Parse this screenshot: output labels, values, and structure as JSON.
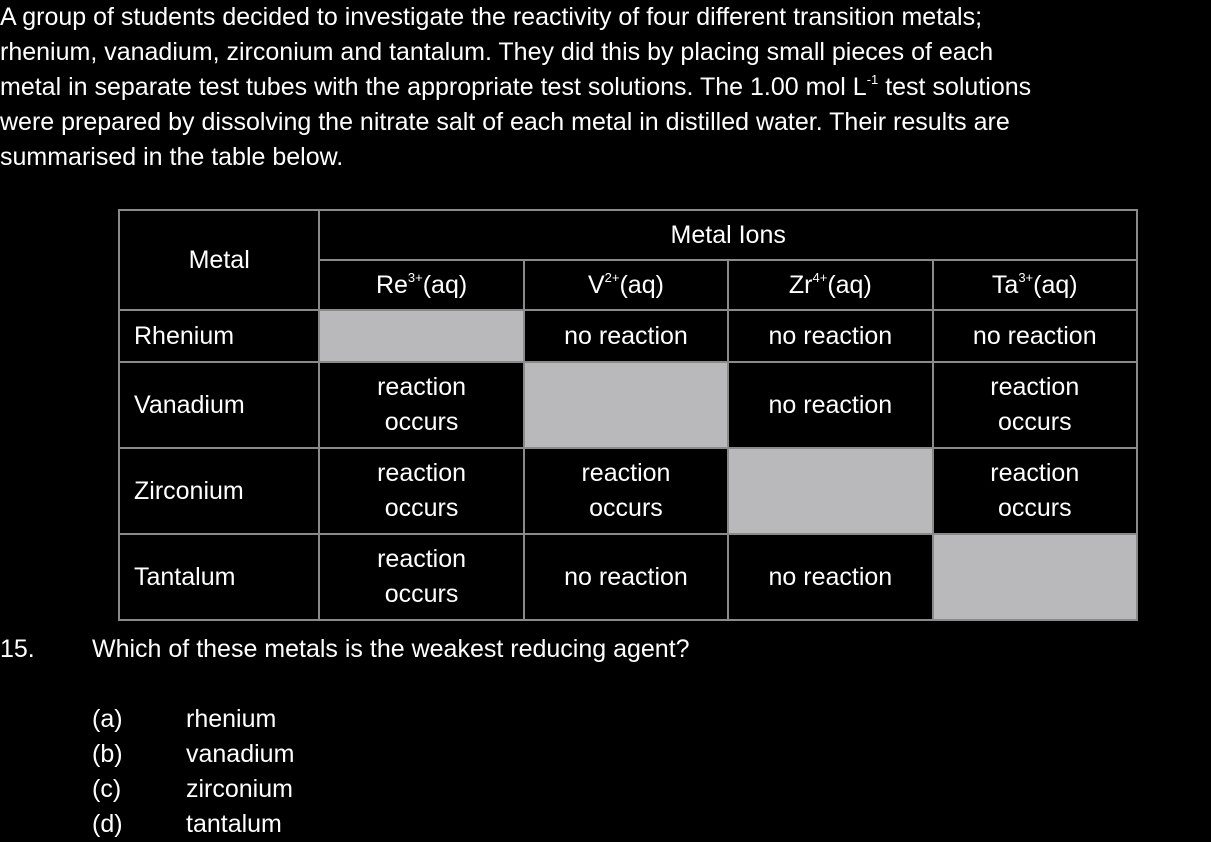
{
  "intro_lines": [
    "A group of students decided to investigate the reactivity of four different transition metals;",
    "rhenium, vanadium, zirconium and tantalum. They did this by placing small pieces of each",
    "metal in separate test tubes with the appropriate test solutions. The 1.00 mol L",
    "-1",
    " test solutions",
    "were prepared by dissolving the nitrate salt of each metal in distilled water. Their results are",
    "summarised in the table below."
  ],
  "table": {
    "metal_header": "Metal",
    "ions_header": "Metal Ions",
    "ions": [
      {
        "base": "Re",
        "charge": "3+",
        "state": "(aq)"
      },
      {
        "base": "V",
        "charge": "2+",
        "state": "(aq)"
      },
      {
        "base": "Zr",
        "charge": "4+",
        "state": "(aq)"
      },
      {
        "base": "Ta",
        "charge": "3+",
        "state": "(aq)"
      }
    ],
    "rows": [
      {
        "metal": "Rhenium",
        "cells": [
          "",
          "no reaction",
          "no reaction",
          "no reaction"
        ]
      },
      {
        "metal": "Vanadium",
        "cells": [
          "reaction occurs",
          "",
          "no reaction",
          "reaction occurs"
        ]
      },
      {
        "metal": "Zirconium",
        "cells": [
          "reaction occurs",
          "reaction occurs",
          "",
          "reaction occurs"
        ]
      },
      {
        "metal": "Tantalum",
        "cells": [
          "reaction occurs",
          "no reaction",
          "no reaction",
          ""
        ]
      }
    ],
    "shaded_color": "#b9b9bb"
  },
  "question": {
    "number": "15.",
    "text": "Which of these metals is the weakest reducing agent?",
    "options": [
      {
        "letter": "(a)",
        "text": "rhenium"
      },
      {
        "letter": "(b)",
        "text": "vanadium"
      },
      {
        "letter": "(c)",
        "text": "zirconium"
      },
      {
        "letter": "(d)",
        "text": "tantalum"
      }
    ]
  }
}
